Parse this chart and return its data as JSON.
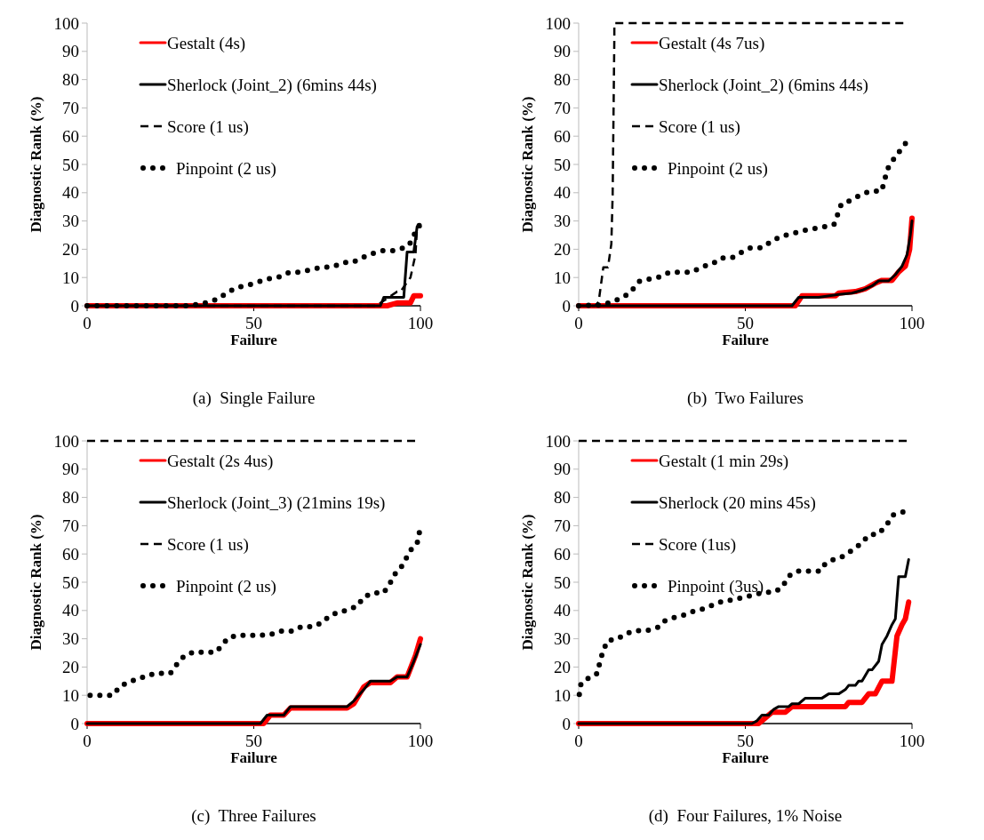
{
  "chart_data": [
    {
      "type": "line",
      "title": "(a)  Single Failure",
      "xlabel": "Failure",
      "ylabel": "Diagnostic Rank (%)",
      "xlim": [
        0,
        100
      ],
      "ylim": [
        0,
        100
      ],
      "xticks": [
        0,
        50,
        100
      ],
      "yticks": [
        0,
        10,
        20,
        30,
        40,
        50,
        60,
        70,
        80,
        90,
        100
      ],
      "legend": "top left",
      "series": [
        {
          "name": "Gestalt (4s)",
          "color": "#ff0000",
          "line_style": "solid",
          "x": [
            0,
            90,
            93,
            97,
            98,
            100
          ],
          "values": [
            0,
            0,
            1,
            1,
            3.5,
            3.5
          ]
        },
        {
          "name": "Sherlock (Joint_2) (6mins 44s)",
          "color": "#000000",
          "line_style": "solid",
          "x": [
            0,
            88,
            89,
            95,
            96,
            98,
            99,
            100
          ],
          "values": [
            0,
            0,
            3,
            3,
            19,
            19,
            28,
            28
          ]
        },
        {
          "name": "Score (1 us)",
          "color": "#000000",
          "line_style": "dashed",
          "x": [
            0,
            87,
            88,
            93,
            94,
            97,
            98.5,
            99,
            100
          ],
          "values": [
            0,
            0,
            1,
            5,
            5,
            10,
            18,
            28,
            29
          ]
        },
        {
          "name": "Pinpoint (2 us)",
          "color": "#000000",
          "line_style": "dotted",
          "x": [
            0,
            31,
            34.5,
            37.5,
            39.6,
            42.4,
            45.5,
            48.6,
            51.5,
            54.7,
            57.4,
            60.8,
            63.9,
            67.2,
            70.5,
            73.6,
            76.9,
            79.6,
            82.5,
            85.6,
            88.8,
            92.2,
            95.3,
            96.6,
            98,
            99.7
          ],
          "values": [
            0,
            0,
            0.8,
            1.6,
            2.7,
            5,
            6.6,
            7.4,
            8.5,
            9.6,
            10.1,
            11.9,
            11.9,
            12.8,
            13.7,
            13.7,
            15.3,
            15.3,
            17,
            18.5,
            19.5,
            19.5,
            20.6,
            21.4,
            24.9,
            28.5
          ]
        }
      ]
    },
    {
      "type": "line",
      "title": "(b)  Two Failures",
      "xlabel": "Failure",
      "ylabel": "Diagnostic Rank (%)",
      "xlim": [
        0,
        100
      ],
      "ylim": [
        0,
        100
      ],
      "xticks": [
        0,
        50,
        100
      ],
      "yticks": [
        0,
        10,
        20,
        30,
        40,
        50,
        60,
        70,
        80,
        90,
        100
      ],
      "legend": "top left",
      "series": [
        {
          "name": "Gestalt (4s 7us)",
          "color": "#ff0000",
          "line_style": "solid",
          "x": [
            0,
            65,
            67,
            77,
            78,
            83,
            86,
            89,
            91,
            94,
            96,
            98,
            99.3,
            100
          ],
          "values": [
            0,
            0,
            3.5,
            3.5,
            4.5,
            5,
            6,
            8,
            9,
            9,
            12,
            14,
            20,
            31
          ]
        },
        {
          "name": "Sherlock (Joint_2) (6mins 44s)",
          "color": "#000000",
          "line_style": "solid",
          "x": [
            0,
            64,
            66,
            72,
            78,
            82,
            85,
            88,
            90,
            93,
            95,
            97,
            98.5,
            99.5,
            100
          ],
          "values": [
            0,
            0,
            3,
            3,
            4,
            4.5,
            5.5,
            7,
            8.8,
            8.8,
            11,
            14,
            18,
            25,
            30
          ]
        },
        {
          "name": "Score (1 us)",
          "color": "#000000",
          "line_style": "dashed",
          "x": [
            0,
            4.9,
            6,
            7.4,
            8.8,
            9.8,
            10.2,
            10.7,
            10.7,
            99
          ],
          "values": [
            0,
            0,
            1.4,
            13.6,
            13.6,
            21.9,
            39.5,
            94.7,
            100,
            100
          ]
        },
        {
          "name": "Pinpoint (2 us)",
          "color": "#000000",
          "line_style": "dotted",
          "x": [
            0,
            7.4,
            10.7,
            13.5,
            16,
            18.1,
            21.4,
            24.7,
            27.3,
            30.7,
            34,
            36.9,
            40,
            42.8,
            45.9,
            48.7,
            51.6,
            54.9,
            57.7,
            60.7,
            63.9,
            67,
            70.2,
            73.5,
            76.6,
            77.7,
            78.8,
            81.6,
            84.7,
            87.6,
            90.9,
            91.8,
            92.6,
            94.4,
            96.3,
            98.1
          ],
          "values": [
            0,
            0.3,
            1.8,
            3,
            5.5,
            8.6,
            9.5,
            10.3,
            11.9,
            11.9,
            11.9,
            13.8,
            14.7,
            16.9,
            16.9,
            18.8,
            20.5,
            20.5,
            22.7,
            24.6,
            25.4,
            26.5,
            27.2,
            27.9,
            28.8,
            32.3,
            36,
            37.3,
            39.3,
            40.6,
            40.6,
            44.5,
            48.3,
            51.7,
            54.7,
            57.5
          ]
        }
      ]
    },
    {
      "type": "line",
      "title": "(c)  Three Failures",
      "xlabel": "Failure",
      "ylabel": "Diagnostic Rank (%)",
      "xlim": [
        0,
        100
      ],
      "ylim": [
        0,
        100
      ],
      "xticks": [
        0,
        50,
        100
      ],
      "yticks": [
        0,
        10,
        20,
        30,
        40,
        50,
        60,
        70,
        80,
        90,
        100
      ],
      "legend": "top left",
      "series": [
        {
          "name": "Gestalt (2s 4us)",
          "color": "#ff0000",
          "line_style": "solid",
          "x": [
            0,
            53,
            55,
            59,
            61,
            78,
            80,
            83,
            85,
            91,
            93,
            96,
            98.5,
            100
          ],
          "values": [
            0,
            0,
            3,
            3,
            5.5,
            5.5,
            7,
            13,
            14.5,
            14.5,
            16.5,
            16.5,
            24,
            30
          ]
        },
        {
          "name": "Sherlock (Joint_3) (21mins 19s)",
          "color": "#000000",
          "line_style": "solid",
          "x": [
            0,
            52,
            54,
            59,
            61,
            78,
            80,
            83,
            85,
            91,
            93,
            96,
            98,
            100
          ],
          "values": [
            0,
            0,
            3,
            3,
            6,
            6,
            8,
            12,
            15,
            15,
            16.5,
            16.5,
            22,
            28
          ]
        },
        {
          "name": "Score (1 us)",
          "color": "#000000",
          "line_style": "dashed",
          "x": [
            0,
            100
          ],
          "values": [
            100,
            100
          ]
        },
        {
          "name": "Pinpoint (2 us)",
          "color": "#000000",
          "line_style": "dotted",
          "x": [
            0.9,
            4.3,
            7.7,
            9.9,
            12.7,
            15.7,
            18.6,
            21.6,
            25,
            26.7,
            28.9,
            31.6,
            35.1,
            38.5,
            40.4,
            42.2,
            45.1,
            48.6,
            52,
            55.2,
            58.3,
            61.5,
            64.4,
            67.7,
            70.5,
            72.7,
            75.4,
            78.3,
            81.1,
            82.9,
            85.6,
            88.9,
            90.7,
            92.2,
            94.2,
            95.6,
            96.9,
            99,
            99.7
          ],
          "values": [
            10,
            10,
            10,
            13.2,
            14.8,
            15.9,
            17.2,
            17.8,
            17.8,
            20.6,
            23.6,
            25.2,
            25.2,
            25.2,
            27.5,
            30.2,
            31.2,
            31.2,
            31.2,
            31.6,
            32.7,
            32.7,
            34.3,
            34.3,
            35.7,
            38.1,
            39.4,
            40.2,
            41.6,
            44.7,
            46.2,
            46.2,
            49.2,
            52.7,
            55.3,
            58.2,
            61.2,
            63.7,
            67.7
          ]
        }
      ]
    },
    {
      "type": "line",
      "title": "(d)  Four Failures, 1% Noise",
      "xlabel": "Failure",
      "ylabel": "Diagnostic Rank (%)",
      "xlim": [
        0,
        100
      ],
      "ylim": [
        0,
        100
      ],
      "xticks": [
        0,
        50,
        100
      ],
      "yticks": [
        0,
        10,
        20,
        30,
        40,
        50,
        60,
        70,
        80,
        90,
        100
      ],
      "legend": "top left",
      "series": [
        {
          "name": "Gestalt (1 min 29s)",
          "color": "#ff0000",
          "line_style": "solid",
          "x": [
            0,
            54,
            56,
            58,
            62,
            64,
            80,
            81,
            85,
            87,
            89,
            91,
            94,
            95.5,
            97,
            98,
            99
          ],
          "values": [
            0,
            0,
            2,
            4,
            4,
            6,
            6,
            7.5,
            7.5,
            10.5,
            10.5,
            15,
            15,
            31,
            35,
            37,
            43
          ]
        },
        {
          "name": "Sherlock (20 mins 45s)",
          "color": "#000000",
          "line_style": "solid",
          "x": [
            0,
            52,
            53.5,
            55,
            57,
            58.5,
            60,
            63,
            64,
            66,
            68,
            73,
            75,
            78,
            80,
            81,
            83,
            84,
            85,
            87,
            88,
            90,
            91,
            92.5,
            94,
            95,
            96,
            98,
            99
          ],
          "values": [
            0,
            0,
            1,
            3,
            3,
            5,
            6,
            6,
            7,
            7,
            9,
            9,
            10.5,
            10.5,
            12,
            13.5,
            13.5,
            15,
            15,
            19,
            19,
            22,
            28,
            31,
            35,
            37,
            52,
            52,
            58
          ]
        },
        {
          "name": "Score (1us)",
          "color": "#000000",
          "line_style": "dashed",
          "x": [
            0,
            100
          ],
          "values": [
            100,
            100
          ]
        },
        {
          "name": "Pinpoint (3us)",
          "color": "#000000",
          "line_style": "dotted",
          "x": [
            0.2,
            0.7,
            3.1,
            5.8,
            6.3,
            7.3,
            8.6,
            11.6,
            14.2,
            17.2,
            20.5,
            23.7,
            25.6,
            28.6,
            31.6,
            34.4,
            37.5,
            40.2,
            43.3,
            46.2,
            49.3,
            52.4,
            55.3,
            58.9,
            61.2,
            62.8,
            65.6,
            68.8,
            72.4,
            74,
            76.7,
            79.7,
            82.3,
            84.8,
            87,
            90,
            92.4,
            94.4,
            97.4
          ],
          "values": [
            10.3,
            14.1,
            16.2,
            17.9,
            21.7,
            25.5,
            29.3,
            29.9,
            31.8,
            32.9,
            32.9,
            34,
            36.2,
            37.5,
            38.4,
            39.7,
            40.6,
            41.9,
            43.3,
            43.8,
            44.6,
            45.5,
            46.3,
            46.6,
            48.4,
            52,
            53.9,
            53.9,
            53.9,
            56.6,
            58.2,
            59.3,
            61.6,
            63.7,
            66.7,
            67.1,
            70.3,
            73.8,
            74.9
          ]
        }
      ]
    }
  ]
}
